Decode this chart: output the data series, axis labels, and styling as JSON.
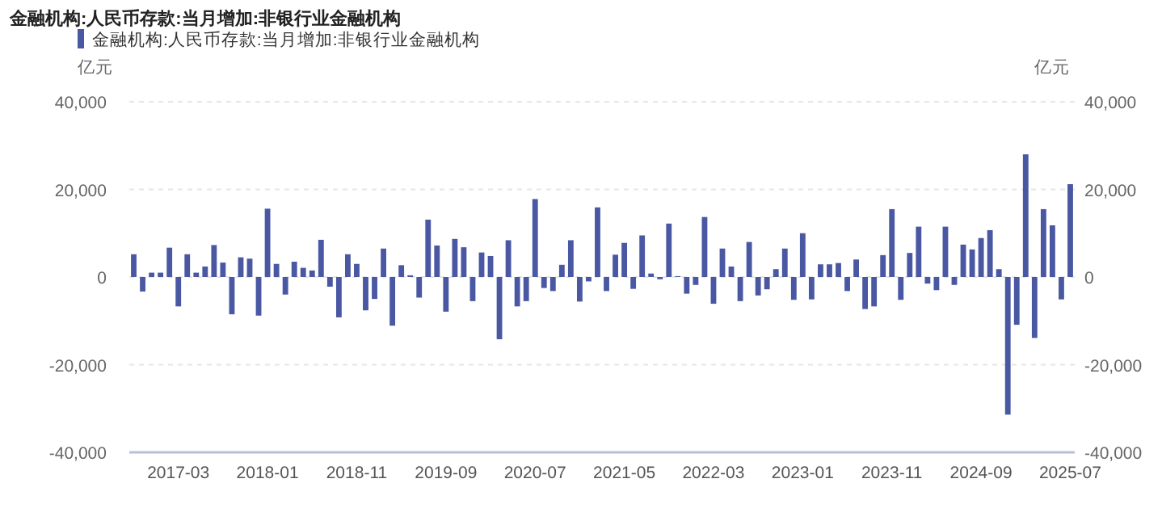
{
  "chart_data": {
    "type": "bar",
    "title": "金融机构:人民币存款:当月增加:非银行业金融机构",
    "ylabel": "亿元",
    "y2label": "亿元",
    "categories": [
      null,
      null,
      null,
      null,
      null,
      "2017-03",
      null,
      null,
      null,
      null,
      null,
      null,
      null,
      null,
      null,
      "2018-01",
      null,
      null,
      null,
      null,
      null,
      null,
      null,
      null,
      null,
      "2018-11",
      null,
      null,
      null,
      null,
      null,
      null,
      null,
      null,
      null,
      "2019-09",
      null,
      null,
      null,
      null,
      null,
      null,
      null,
      null,
      null,
      "2020-07",
      null,
      null,
      null,
      null,
      null,
      null,
      null,
      null,
      null,
      "2021-05",
      null,
      null,
      null,
      null,
      null,
      null,
      null,
      null,
      null,
      "2022-03",
      null,
      null,
      null,
      null,
      null,
      null,
      null,
      null,
      null,
      "2023-01",
      null,
      null,
      null,
      null,
      null,
      null,
      null,
      null,
      null,
      "2023-11",
      null,
      null,
      null,
      null,
      null,
      null,
      null,
      null,
      null,
      "2024-09",
      null,
      null,
      null,
      null,
      null,
      null,
      null,
      null,
      null,
      "2025-07"
    ],
    "series": [
      {
        "name": "金融机构:人民币存款:当月增加:非银行业金融机构",
        "color": "#4a58a3",
        "values": [
          5200,
          -3300,
          1000,
          1000,
          6700,
          -6700,
          5200,
          1000,
          2400,
          7300,
          3300,
          -8500,
          4500,
          4200,
          -8800,
          15600,
          3000,
          -4000,
          3500,
          2100,
          1500,
          8500,
          -2200,
          -9200,
          5200,
          3000,
          -7600,
          -5000,
          6500,
          -11100,
          2700,
          400,
          -4700,
          13100,
          7200,
          -7900,
          8700,
          6800,
          -5500,
          5600,
          4800,
          -14200,
          8400,
          -6700,
          -5500,
          17800,
          -2500,
          -3200,
          2800,
          8400,
          -5600,
          -1000,
          15900,
          -3200,
          5100,
          7800,
          -2700,
          9500,
          800,
          -500,
          12200,
          200,
          -3800,
          -1800,
          13700,
          -6100,
          6500,
          2400,
          -5500,
          8000,
          -4200,
          -2800,
          1800,
          6500,
          -5200,
          10000,
          -5100,
          2900,
          2900,
          3200,
          -3200,
          4000,
          -7300,
          -6700,
          5000,
          15500,
          -5200,
          5500,
          11500,
          -1500,
          -3000,
          11500,
          -1800,
          7400,
          6300,
          8900,
          10700,
          1800,
          -31400,
          -10900,
          28000,
          -13900,
          15500,
          11800,
          -5100,
          21200
        ]
      }
    ],
    "ylim": [
      -40000,
      40000
    ],
    "yticks": [
      {
        "value": -40000,
        "label": "-40,000"
      },
      {
        "value": -20000,
        "label": "-20,000"
      },
      0,
      {
        "value": 20000,
        "label": "20,000"
      },
      {
        "value": 40000,
        "label": "40,000"
      }
    ],
    "y2lim": [
      -40000,
      40000
    ],
    "y2ticks": [
      {
        "value": -40000,
        "label": "-40,000"
      },
      {
        "value": -20000,
        "label": "-20,000"
      },
      0,
      {
        "value": 20000,
        "label": "20,000"
      },
      {
        "value": 40000,
        "label": "40,000"
      }
    ],
    "grid": "y",
    "legend": "top left"
  }
}
